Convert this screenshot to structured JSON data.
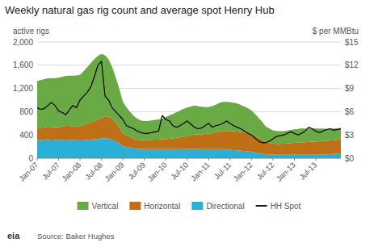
{
  "chart_data": {
    "type": "area",
    "title": "Weekly natural gas rig count and average spot Henry Hub",
    "ylabel": "active rigs",
    "y2label": "$ per MMBtu",
    "source": "Source: Baker Hughes",
    "annotations": [
      "eia"
    ],
    "stacked": true,
    "grid": true,
    "legend": "bottom",
    "categories": [
      "Jan-07",
      null,
      null,
      null,
      null,
      null,
      "Jul-07",
      null,
      null,
      null,
      null,
      null,
      "Jan-08",
      null,
      null,
      null,
      null,
      null,
      "Jul-08",
      null,
      null,
      null,
      null,
      null,
      "Jan-09",
      null,
      null,
      null,
      null,
      null,
      "Jul-09",
      null,
      null,
      null,
      null,
      null,
      "Jan-10",
      null,
      null,
      null,
      null,
      null,
      "Jul-10",
      null,
      null,
      null,
      null,
      null,
      "Jan-11",
      null,
      null,
      null,
      null,
      null,
      "Jul-11",
      null,
      null,
      null,
      null,
      null,
      "Jan-12",
      null,
      null,
      null,
      null,
      null,
      "Jul-12",
      null,
      null,
      null,
      null,
      null,
      "Jan-13",
      null,
      null,
      null,
      null,
      null,
      "Jul-13",
      null,
      null,
      null,
      null,
      null,
      null,
      null
    ],
    "ylim": [
      0,
      2000
    ],
    "yticks": [
      0,
      400,
      800,
      {
        "value": 1200,
        "label": "1,200"
      },
      {
        "value": 1600,
        "label": "1,600"
      },
      {
        "value": 2000,
        "label": "2,000"
      }
    ],
    "y2lim": [
      0,
      15
    ],
    "y2ticks": [
      {
        "value": 0,
        "label": "$0"
      },
      {
        "value": 3,
        "label": "$3"
      },
      {
        "value": 6,
        "label": "$6"
      },
      {
        "value": 9,
        "label": "$9"
      },
      {
        "value": 12,
        "label": "$12"
      },
      {
        "value": 15,
        "label": "$15"
      }
    ],
    "series": [
      {
        "name": "Directional",
        "type": "area",
        "color": "#2ab0d8",
        "values": [
          310,
          315,
          320,
          325,
          320,
          315,
          310,
          315,
          320,
          315,
          310,
          310,
          305,
          310,
          315,
          320,
          325,
          330,
          340,
          345,
          340,
          320,
          290,
          260,
          210,
          195,
          185,
          170,
          160,
          155,
          155,
          155,
          155,
          155,
          155,
          155,
          155,
          155,
          155,
          155,
          155,
          155,
          155,
          160,
          160,
          155,
          155,
          155,
          155,
          155,
          155,
          155,
          155,
          150,
          145,
          140,
          135,
          130,
          125,
          120,
          110,
          100,
          90,
          80,
          70,
          65,
          60,
          60,
          60,
          60,
          60,
          60,
          60,
          60,
          60,
          60,
          60,
          60,
          60,
          65,
          65,
          65,
          70,
          75,
          80,
          85
        ]
      },
      {
        "name": "Horizontal",
        "type": "area",
        "color": "#bf7016",
        "values": [
          200,
          205,
          210,
          215,
          215,
          220,
          225,
          230,
          235,
          240,
          240,
          240,
          250,
          265,
          280,
          295,
          310,
          330,
          355,
          375,
          380,
          360,
          320,
          275,
          220,
          200,
          185,
          170,
          160,
          155,
          155,
          155,
          160,
          165,
          165,
          170,
          175,
          180,
          185,
          195,
          205,
          215,
          225,
          235,
          245,
          250,
          255,
          260,
          265,
          275,
          290,
          305,
          315,
          320,
          325,
          325,
          325,
          320,
          315,
          305,
          295,
          280,
          260,
          240,
          215,
          200,
          190,
          185,
          185,
          190,
          195,
          200,
          205,
          210,
          215,
          215,
          220,
          225,
          225,
          225,
          230,
          230,
          235,
          235,
          240,
          245
        ]
      },
      {
        "name": "Vertical",
        "type": "area",
        "color": "#6aaa45",
        "values": [
          820,
          825,
          830,
          835,
          840,
          845,
          850,
          855,
          860,
          865,
          870,
          875,
          880,
          920,
          970,
          1020,
          1070,
          1100,
          1100,
          1050,
          980,
          890,
          780,
          660,
          540,
          480,
          430,
          390,
          360,
          340,
          330,
          330,
          335,
          340,
          345,
          355,
          380,
          400,
          420,
          440,
          460,
          480,
          490,
          495,
          500,
          490,
          475,
          465,
          460,
          465,
          475,
          490,
          500,
          500,
          495,
          490,
          480,
          465,
          450,
          435,
          415,
          380,
          340,
          305,
          260,
          245,
          230,
          225,
          220,
          215,
          220,
          225,
          230,
          235,
          240,
          235,
          230,
          230,
          225,
          220,
          215,
          210,
          205,
          200,
          195,
          190
        ]
      },
      {
        "name": "HH Spot",
        "type": "line",
        "axis": "y2",
        "color": "#000000",
        "values": [
          6.5,
          6.3,
          6.4,
          6.8,
          7.2,
          6.8,
          6.1,
          5.9,
          5.6,
          6.2,
          6.8,
          6.5,
          7.5,
          8.0,
          8.5,
          9.2,
          10.5,
          12.0,
          12.5,
          8.0,
          7.5,
          6.5,
          6.0,
          5.5,
          5.0,
          4.2,
          4.0,
          3.8,
          3.5,
          3.3,
          3.2,
          3.2,
          3.3,
          3.4,
          3.5,
          5.5,
          5.0,
          4.8,
          4.2,
          4.0,
          4.2,
          4.5,
          4.8,
          4.4,
          4.0,
          3.8,
          3.9,
          4.2,
          4.5,
          4.0,
          4.2,
          4.3,
          4.5,
          4.8,
          4.5,
          4.2,
          4.0,
          3.8,
          3.5,
          3.2,
          3.0,
          2.6,
          2.2,
          2.0,
          2.0,
          2.2,
          2.5,
          2.8,
          2.9,
          3.0,
          3.2,
          3.4,
          3.2,
          3.0,
          3.2,
          3.5,
          4.0,
          3.8,
          3.5,
          3.3,
          3.5,
          3.7,
          3.8,
          3.6,
          3.7,
          3.8
        ]
      }
    ]
  }
}
